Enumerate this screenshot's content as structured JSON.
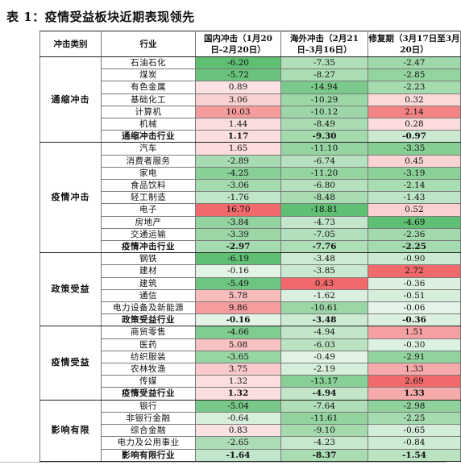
{
  "title": "表 1：疫情受益板块近期表现领先",
  "headers": {
    "category": "冲击类别",
    "industry": "行业",
    "domestic": "国内冲击（1月20日-2月20日）",
    "overseas": "海外冲击（2月21日-3月16日）",
    "recovery": "修复期（3月17日至3月20日）"
  },
  "groups": [
    {
      "name": "通缩冲击",
      "rows": [
        {
          "industry": "石油石化",
          "d": "-6.20",
          "o": "-7.35",
          "r": "-2.47"
        },
        {
          "industry": "煤炭",
          "d": "-5.72",
          "o": "-8.27",
          "r": "-2.85"
        },
        {
          "industry": "有色金属",
          "d": "0.89",
          "o": "-14.94",
          "r": "-2.23"
        },
        {
          "industry": "基础化工",
          "d": "3.06",
          "o": "-10.29",
          "r": "0.32"
        },
        {
          "industry": "计算机",
          "d": "10.03",
          "o": "-10.12",
          "r": "2.14"
        },
        {
          "industry": "机械",
          "d": "1.44",
          "o": "-8.49",
          "r": "0.28"
        },
        {
          "industry": "通缩冲击行业",
          "d": "1.17",
          "o": "-9.30",
          "r": "-0.97",
          "sum": true
        }
      ]
    },
    {
      "name": "疫情冲击",
      "rows": [
        {
          "industry": "汽车",
          "d": "1.65",
          "o": "-11.10",
          "r": "-3.35"
        },
        {
          "industry": "消费者服务",
          "d": "-2.89",
          "o": "-6.74",
          "r": "0.45"
        },
        {
          "industry": "家电",
          "d": "-4.25",
          "o": "-11.20",
          "r": "-3.19"
        },
        {
          "industry": "食品饮料",
          "d": "-3.06",
          "o": "-6.80",
          "r": "-2.14"
        },
        {
          "industry": "轻工制造",
          "d": "-1.76",
          "o": "-8.48",
          "r": "-1.43"
        },
        {
          "industry": "电子",
          "d": "16.70",
          "o": "-18.81",
          "r": "0.52"
        },
        {
          "industry": "房地产",
          "d": "-3.84",
          "o": "-4.73",
          "r": "-4.69"
        },
        {
          "industry": "交通运输",
          "d": "-3.39",
          "o": "-7.05",
          "r": "-2.36"
        },
        {
          "industry": "疫情冲击行业",
          "d": "-2.97",
          "o": "-7.76",
          "r": "-2.25",
          "sum": true
        }
      ]
    },
    {
      "name": "政策受益",
      "rows": [
        {
          "industry": "钢铁",
          "d": "-6.19",
          "o": "-3.48",
          "r": "-0.90"
        },
        {
          "industry": "建材",
          "d": "-0.16",
          "o": "-3.85",
          "r": "2.72"
        },
        {
          "industry": "建筑",
          "d": "-5.49",
          "o": "0.43",
          "r": "-0.36"
        },
        {
          "industry": "通信",
          "d": "5.78",
          "o": "-1.62",
          "r": "-0.51"
        },
        {
          "industry": "电力设备及新能源",
          "d": "9.86",
          "o": "-10.61",
          "r": "-0.06"
        },
        {
          "industry": "政策受益行业",
          "d": "-0.16",
          "o": "-3.48",
          "r": "-0.36",
          "sum": true
        }
      ]
    },
    {
      "name": "疫情受益",
      "rows": [
        {
          "industry": "商贸零售",
          "d": "-4.66",
          "o": "-4.94",
          "r": "1.51"
        },
        {
          "industry": "医药",
          "d": "5.08",
          "o": "-6.03",
          "r": "-0.30"
        },
        {
          "industry": "纺织服装",
          "d": "-3.65",
          "o": "-0.49",
          "r": "-2.91"
        },
        {
          "industry": "农林牧渔",
          "d": "3.75",
          "o": "-2.19",
          "r": "1.33"
        },
        {
          "industry": "传媒",
          "d": "1.32",
          "o": "-13.17",
          "r": "2.69"
        },
        {
          "industry": "疫情受益行业",
          "d": "1.32",
          "o": "-4.94",
          "r": "1.33",
          "sum": true
        }
      ]
    },
    {
      "name": "影响有限",
      "rows": [
        {
          "industry": "银行",
          "d": "-5.04",
          "o": "-7.64",
          "r": "-2.98"
        },
        {
          "industry": "非银行金融",
          "d": "-0.64",
          "o": "-11.61",
          "r": "-2.25"
        },
        {
          "industry": "综合金融",
          "d": "0.83",
          "o": "-9.10",
          "r": "-0.65"
        },
        {
          "industry": "电力及公用事业",
          "d": "-2.65",
          "o": "-4.23",
          "r": "-0.84"
        },
        {
          "industry": "影响有限行业",
          "d": "-1.64",
          "o": "-8.37",
          "r": "-1.54",
          "sum": true
        }
      ]
    }
  ],
  "colors": {
    "pos_strong": "#f0696b",
    "pos_light": "#fce8e8",
    "neg_strong": "#5fbf73",
    "neg_light": "#e6f4e8"
  }
}
